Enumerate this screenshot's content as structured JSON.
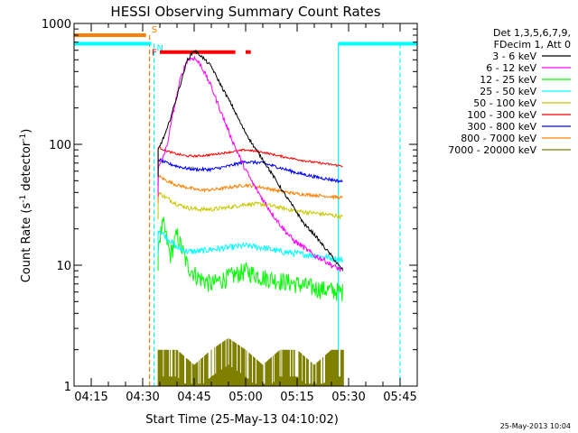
{
  "chart_data": {
    "type": "line",
    "title": "HESSI Observing Summary Count Rates",
    "xlabel": "Start Time (25-May-13 04:10:02)",
    "ylabel_main": "Count Rate (s",
    "ylabel_sup1": "-1",
    "ylabel_mid": " detector",
    "ylabel_sup2": "-1",
    "ylabel_end": ")",
    "y_scale": "log",
    "ylim": [
      1,
      1000
    ],
    "xlim_minutes_after_0410": [
      0,
      100
    ],
    "x_ticks": [
      {
        "label": "04:15",
        "minutes": 5
      },
      {
        "label": "04:30",
        "minutes": 20
      },
      {
        "label": "04:45",
        "minutes": 35
      },
      {
        "label": "05:00",
        "minutes": 50
      },
      {
        "label": "05:15",
        "minutes": 65
      },
      {
        "label": "05:30",
        "minutes": 80
      },
      {
        "label": "05:45",
        "minutes": 95
      }
    ],
    "y_ticks": [
      {
        "label": "1",
        "value": 1
      },
      {
        "label": "10",
        "value": 10
      },
      {
        "label": "100",
        "value": 100
      },
      {
        "label": "1000",
        "value": 1000
      }
    ],
    "legend_header": [
      "Det 1,3,5,6,7,9,",
      "FDecim 1, Att 0"
    ],
    "legend_placement": "right",
    "flag_labels": {
      "S": "S",
      "N": "N",
      "F": "F"
    },
    "series": [
      {
        "name": "3 - 6 keV",
        "color": "#000000",
        "points": [
          [
            24.5,
            90
          ],
          [
            27,
            130
          ],
          [
            30,
            250
          ],
          [
            33,
            500
          ],
          [
            35,
            600
          ],
          [
            37,
            540
          ],
          [
            40,
            440
          ],
          [
            43,
            300
          ],
          [
            46,
            210
          ],
          [
            49,
            140
          ],
          [
            52,
            100
          ],
          [
            55,
            75
          ],
          [
            58,
            55
          ],
          [
            61,
            40
          ],
          [
            64,
            30
          ],
          [
            67,
            22
          ],
          [
            70,
            18
          ],
          [
            73,
            14
          ],
          [
            75,
            12
          ],
          [
            77,
            10
          ],
          [
            78.5,
            9
          ]
        ]
      },
      {
        "name": "6 - 12 keV",
        "color": "#ff00ff",
        "points": [
          [
            24.5,
            62
          ],
          [
            27,
            95
          ],
          [
            29,
            190
          ],
          [
            31,
            350
          ],
          [
            33,
            500
          ],
          [
            35,
            520
          ],
          [
            37,
            450
          ],
          [
            40,
            300
          ],
          [
            43,
            180
          ],
          [
            46,
            110
          ],
          [
            49,
            70
          ],
          [
            52,
            48
          ],
          [
            55,
            35
          ],
          [
            58,
            26
          ],
          [
            61,
            20
          ],
          [
            64,
            16
          ],
          [
            67,
            14
          ],
          [
            70,
            12
          ],
          [
            73,
            11
          ],
          [
            75,
            10
          ],
          [
            78.5,
            9
          ]
        ]
      },
      {
        "name": "12 - 25 keV",
        "color": "#00ff00",
        "points": [
          [
            24.5,
            15
          ],
          [
            26,
            22
          ],
          [
            28,
            12
          ],
          [
            30,
            18
          ],
          [
            33,
            10
          ],
          [
            36,
            8
          ],
          [
            40,
            7
          ],
          [
            45,
            8
          ],
          [
            50,
            9
          ],
          [
            55,
            8
          ],
          [
            60,
            7.5
          ],
          [
            65,
            7
          ],
          [
            70,
            6.5
          ],
          [
            75,
            6.2
          ],
          [
            78.5,
            6
          ]
        ]
      },
      {
        "name": "25 - 50 keV",
        "color": "#00ffff",
        "points": [
          [
            24.5,
            20
          ],
          [
            27,
            17
          ],
          [
            30,
            14
          ],
          [
            33,
            13
          ],
          [
            36,
            13
          ],
          [
            40,
            13.5
          ],
          [
            45,
            14
          ],
          [
            50,
            14.5
          ],
          [
            55,
            14
          ],
          [
            60,
            13
          ],
          [
            65,
            12.5
          ],
          [
            70,
            12
          ],
          [
            75,
            11.5
          ],
          [
            78.5,
            11
          ]
        ]
      },
      {
        "name": "50 - 100 keV",
        "color": "#c8c800",
        "points": [
          [
            24.5,
            40
          ],
          [
            27,
            36
          ],
          [
            30,
            32
          ],
          [
            33,
            30
          ],
          [
            36,
            29
          ],
          [
            40,
            29
          ],
          [
            45,
            30
          ],
          [
            50,
            32
          ],
          [
            55,
            32
          ],
          [
            60,
            30
          ],
          [
            65,
            28
          ],
          [
            70,
            27
          ],
          [
            75,
            26
          ],
          [
            78.5,
            25
          ]
        ]
      },
      {
        "name": "100 - 300 keV",
        "color": "#ff0000",
        "points": [
          [
            24.5,
            95
          ],
          [
            27,
            88
          ],
          [
            30,
            83
          ],
          [
            33,
            80
          ],
          [
            36,
            80
          ],
          [
            40,
            82
          ],
          [
            45,
            86
          ],
          [
            50,
            90
          ],
          [
            55,
            86
          ],
          [
            60,
            80
          ],
          [
            65,
            75
          ],
          [
            70,
            71
          ],
          [
            75,
            68
          ],
          [
            78.5,
            66
          ]
        ]
      },
      {
        "name": "300 - 800 keV",
        "color": "#0000ff",
        "points": [
          [
            24.5,
            75
          ],
          [
            27,
            70
          ],
          [
            30,
            66
          ],
          [
            33,
            63
          ],
          [
            36,
            62
          ],
          [
            40,
            62
          ],
          [
            45,
            66
          ],
          [
            50,
            72
          ],
          [
            55,
            70
          ],
          [
            60,
            64
          ],
          [
            65,
            58
          ],
          [
            70,
            54
          ],
          [
            75,
            51
          ],
          [
            78.5,
            49
          ]
        ]
      },
      {
        "name": "800 - 7000 keV",
        "color": "#ff8000",
        "points": [
          [
            24.5,
            55
          ],
          [
            27,
            50
          ],
          [
            30,
            46
          ],
          [
            33,
            44
          ],
          [
            36,
            42
          ],
          [
            40,
            42
          ],
          [
            45,
            44
          ],
          [
            50,
            46
          ],
          [
            55,
            44
          ],
          [
            60,
            41
          ],
          [
            65,
            39
          ],
          [
            70,
            38
          ],
          [
            75,
            37
          ],
          [
            78.5,
            36
          ]
        ]
      },
      {
        "name": "7000 - 20000 keV",
        "color": "#808000",
        "points": [
          [
            24.5,
            2
          ],
          [
            30,
            2
          ],
          [
            35,
            1.5
          ],
          [
            40,
            2
          ],
          [
            45,
            2.5
          ],
          [
            50,
            2
          ],
          [
            55,
            1.5
          ],
          [
            60,
            2
          ],
          [
            65,
            2
          ],
          [
            70,
            1.5
          ],
          [
            75,
            2
          ],
          [
            78.5,
            2
          ]
        ]
      }
    ],
    "flag_bars": [
      {
        "flag": "S",
        "color": "#ff8000",
        "y_value": 800,
        "x_start": 0,
        "x_end": 21,
        "dash_x": 22
      },
      {
        "flag": "N",
        "color": "#00ffff",
        "y_value": 680,
        "x_start": 0,
        "x_end": 22.5,
        "dash_x": 23.3
      },
      {
        "flag": "F",
        "color": "#ff0000",
        "y_value": 580,
        "segments": [
          [
            25,
            47
          ],
          [
            50,
            51.5
          ]
        ]
      },
      {
        "flag": "N",
        "color": "#00ffff",
        "y_value": 680,
        "x_start": 77,
        "x_end": 100,
        "dash_x": 95
      }
    ],
    "attenuator_line_x": 77
  },
  "footer_timestamp": "25-May-2013 10:04"
}
